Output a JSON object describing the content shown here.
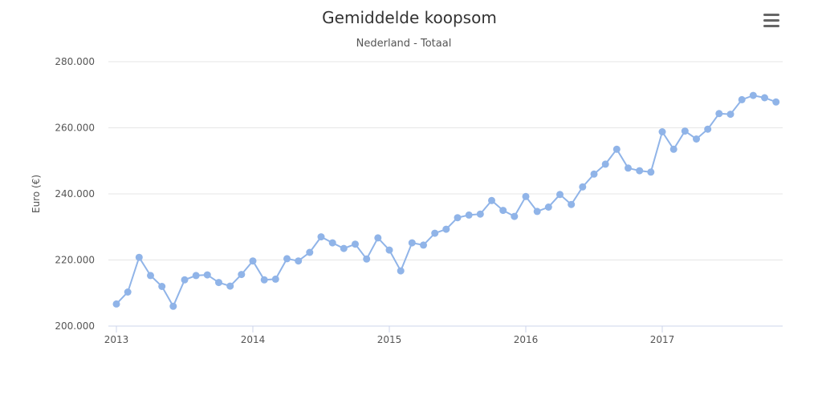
{
  "chart_data": {
    "type": "line",
    "title": "Gemiddelde koopsom",
    "subtitle": "Nederland - Totaal",
    "xlabel": "",
    "ylabel": "Euro (€)",
    "ylim": [
      200000,
      280000
    ],
    "yticks": [
      200000,
      220000,
      240000,
      260000,
      280000
    ],
    "ytick_labels": [
      "200.000",
      "220.000",
      "240.000",
      "260.000",
      "280.000"
    ],
    "xticks": [
      2013,
      2014,
      2015,
      2016,
      2017
    ],
    "xtick_labels": [
      "2013",
      "2014",
      "2015",
      "2016",
      "2017"
    ],
    "grid": true,
    "legend": "none",
    "series": [
      {
        "color": "#90b4e8",
        "x": [
          "2013-01",
          "2013-02",
          "2013-03",
          "2013-04",
          "2013-05",
          "2013-06",
          "2013-07",
          "2013-08",
          "2013-09",
          "2013-10",
          "2013-11",
          "2013-12",
          "2014-01",
          "2014-02",
          "2014-03",
          "2014-04",
          "2014-05",
          "2014-06",
          "2014-07",
          "2014-08",
          "2014-09",
          "2014-10",
          "2014-11",
          "2014-12",
          "2015-01",
          "2015-02",
          "2015-03",
          "2015-04",
          "2015-05",
          "2015-06",
          "2015-07",
          "2015-08",
          "2015-09",
          "2015-10",
          "2015-11",
          "2015-12",
          "2016-01",
          "2016-02",
          "2016-03",
          "2016-04",
          "2016-05",
          "2016-06",
          "2016-07",
          "2016-08",
          "2016-09",
          "2016-10",
          "2016-11",
          "2016-12",
          "2017-01",
          "2017-02",
          "2017-03",
          "2017-04",
          "2017-05",
          "2017-06",
          "2017-07",
          "2017-08",
          "2017-09",
          "2017-10",
          "2017-11"
        ],
        "values": [
          206700,
          210300,
          220800,
          215300,
          212000,
          206000,
          214000,
          215300,
          215500,
          213200,
          212100,
          215600,
          219700,
          214000,
          214200,
          220400,
          219700,
          222300,
          227000,
          225200,
          223500,
          224800,
          220300,
          226700,
          223000,
          216700,
          225200,
          224500,
          228100,
          229300,
          232800,
          233600,
          233900,
          238000,
          235000,
          233200,
          239200,
          234700,
          236000,
          239800,
          236800,
          242100,
          246000,
          249000,
          253500,
          247800,
          247000,
          246600,
          258800,
          253500,
          259000,
          256600,
          259600,
          264300,
          264100,
          268500,
          269800,
          269100,
          267800
        ]
      }
    ]
  },
  "menu": {
    "icon": "hamburger-menu-icon"
  }
}
